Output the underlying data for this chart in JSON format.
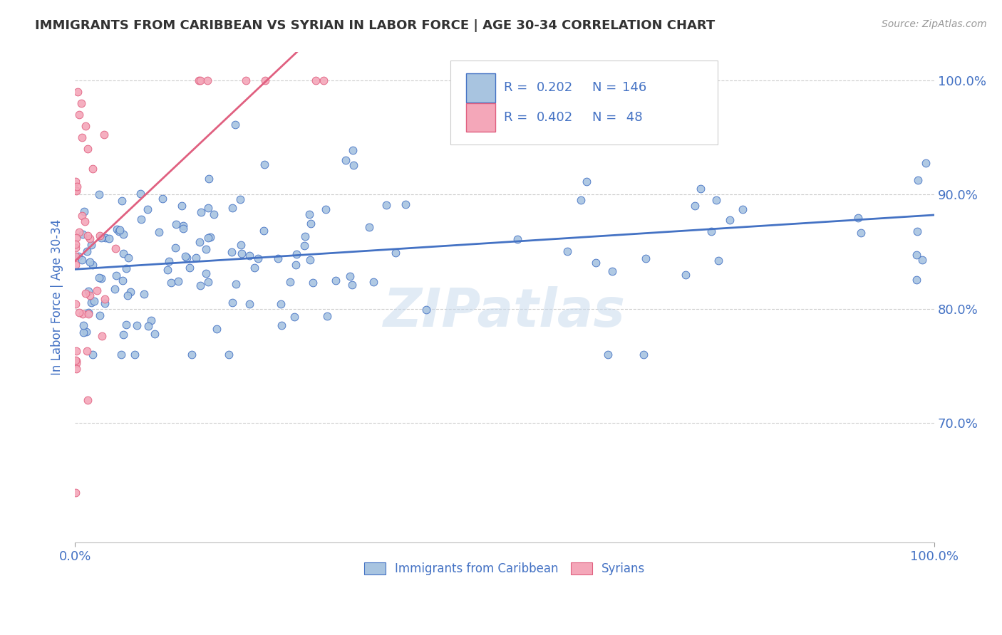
{
  "title": "IMMIGRANTS FROM CARIBBEAN VS SYRIAN IN LABOR FORCE | AGE 30-34 CORRELATION CHART",
  "source_text": "Source: ZipAtlas.com",
  "ylabel": "In Labor Force | Age 30-34",
  "watermark": "ZIPatlas",
  "label1": "Immigrants from Caribbean",
  "label2": "Syrians",
  "xmin": 0.0,
  "xmax": 1.0,
  "ymin": 0.595,
  "ymax": 1.025,
  "yticks": [
    0.7,
    0.8,
    0.9,
    1.0
  ],
  "ytick_labels": [
    "70.0%",
    "80.0%",
    "90.0%",
    "100.0%"
  ],
  "xtick_labels": [
    "0.0%",
    "100.0%"
  ],
  "color1": "#a8c4e0",
  "color2": "#f4a7b9",
  "line_color1": "#4472c4",
  "line_color2": "#e06080",
  "title_color": "#333333",
  "axis_label_color": "#4472c4",
  "background_color": "#ffffff"
}
